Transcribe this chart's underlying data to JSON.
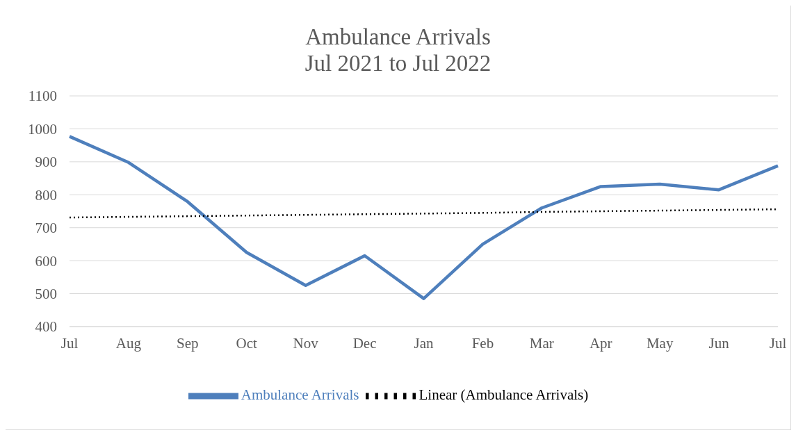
{
  "chart_data": {
    "type": "line",
    "title": "Ambulance Arrivals\nJul 2021 to Jul 2022",
    "categories": [
      "Jul",
      "Aug",
      "Sep",
      "Oct",
      "Nov",
      "Dec",
      "Jan",
      "Feb",
      "Mar",
      "Apr",
      "May",
      "Jun",
      "Jul"
    ],
    "series": [
      {
        "name": "Ambulance Arrivals",
        "color": "#4e7fbc",
        "line_style": "solid",
        "values": [
          977,
          898,
          779,
          625,
          525,
          615,
          485,
          650,
          760,
          825,
          832,
          815,
          888
        ]
      },
      {
        "name": "Linear (Ambulance Arrivals)",
        "color": "#000000",
        "line_style": "dotted",
        "values": [
          731,
          733,
          735,
          737,
          739,
          741,
          743,
          745,
          748,
          750,
          752,
          754,
          756
        ]
      }
    ],
    "ylim": [
      400,
      1100
    ],
    "yticks": [
      400,
      500,
      600,
      700,
      800,
      900,
      1000,
      1100
    ],
    "grid": "y",
    "legend": "bottom",
    "marker": "none"
  }
}
